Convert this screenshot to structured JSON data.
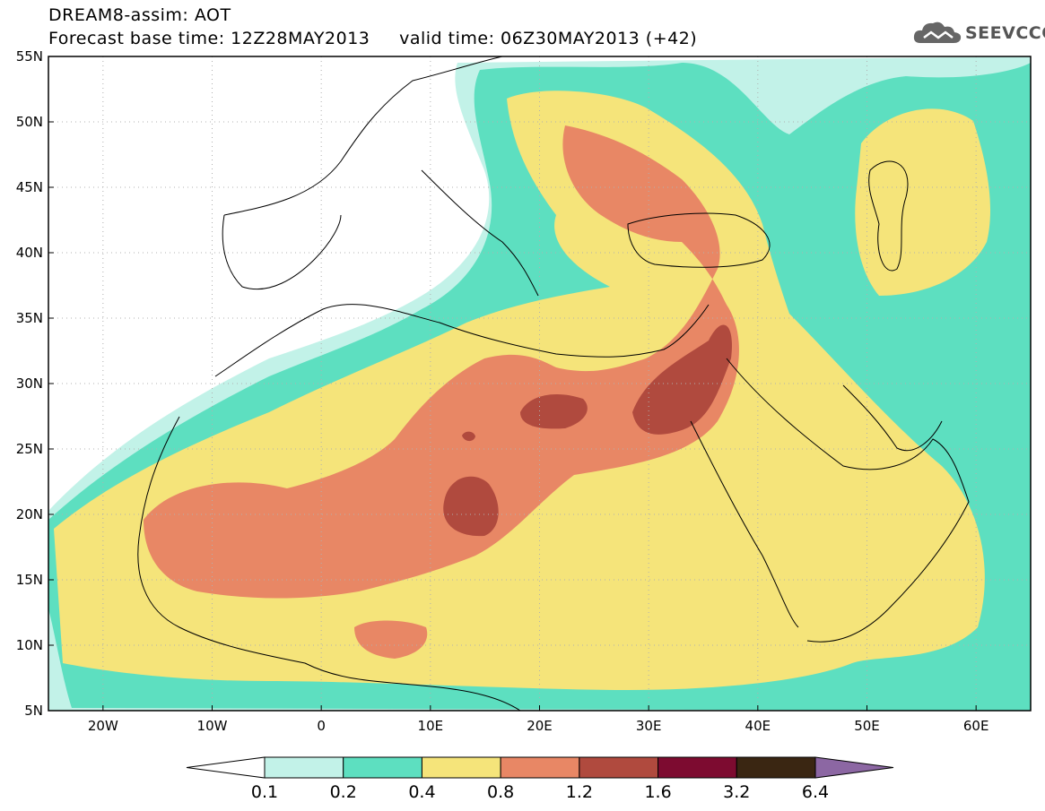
{
  "header": {
    "title": "DREAM8-assim: AOT",
    "base_time_label": "Forecast base time: 12Z28MAY2013",
    "valid_time_label": "valid time: 06Z30MAY2013 (+42)"
  },
  "logo": {
    "text": "SEEVCCC",
    "icon": "cloud-icon"
  },
  "map": {
    "lon_range": [
      -25,
      65
    ],
    "lat_range": [
      5,
      55
    ],
    "lon_ticks": [
      {
        "value": -20,
        "label": "20W"
      },
      {
        "value": -10,
        "label": "10W"
      },
      {
        "value": 0,
        "label": "0"
      },
      {
        "value": 10,
        "label": "10E"
      },
      {
        "value": 20,
        "label": "20E"
      },
      {
        "value": 30,
        "label": "30E"
      },
      {
        "value": 40,
        "label": "40E"
      },
      {
        "value": 50,
        "label": "50E"
      },
      {
        "value": 60,
        "label": "60E"
      }
    ],
    "lat_ticks": [
      {
        "value": 5,
        "label": "5N"
      },
      {
        "value": 10,
        "label": "10N"
      },
      {
        "value": 15,
        "label": "15N"
      },
      {
        "value": 20,
        "label": "20N"
      },
      {
        "value": 25,
        "label": "25N"
      },
      {
        "value": 30,
        "label": "30N"
      },
      {
        "value": 35,
        "label": "35N"
      },
      {
        "value": 40,
        "label": "40N"
      },
      {
        "value": 45,
        "label": "45N"
      },
      {
        "value": 50,
        "label": "50N"
      },
      {
        "value": 55,
        "label": "55N"
      }
    ],
    "grid": true
  },
  "colorbar": {
    "colors": [
      "#ffffff",
      "#c2f2e8",
      "#5ddfc0",
      "#f5e47a",
      "#e88765",
      "#b04a3e",
      "#7d0b30",
      "#3a2612",
      "#8c67a3"
    ],
    "labels": [
      "0.1",
      "0.2",
      "0.4",
      "0.8",
      "1.2",
      "1.6",
      "3.2",
      "6.4"
    ]
  }
}
